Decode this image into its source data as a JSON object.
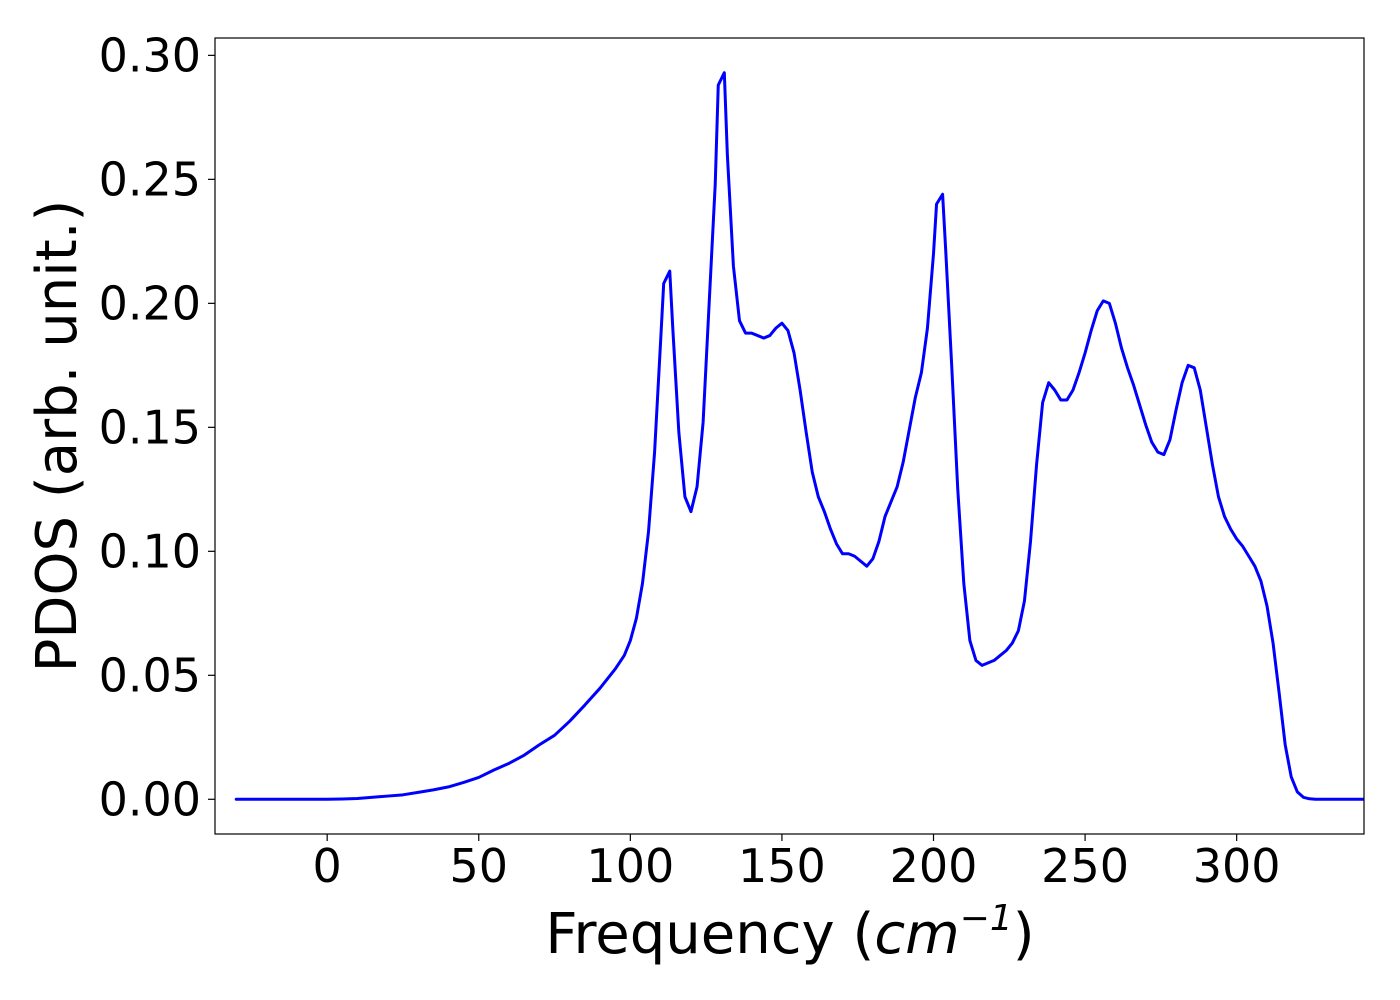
{
  "chart_data": {
    "type": "line",
    "title": "",
    "xlabel": {
      "prefix": "Frequency (",
      "unit": "cm",
      "exponent": "−1",
      "suffix": ")"
    },
    "ylabel": "PDOS (arb. unit.)",
    "xlim": [
      -37,
      342
    ],
    "ylim": [
      -0.014,
      0.307
    ],
    "xticks": [
      0,
      50,
      100,
      150,
      200,
      250,
      300
    ],
    "xtick_labels": [
      "0",
      "50",
      "100",
      "150",
      "200",
      "250",
      "300"
    ],
    "yticks": [
      0.0,
      0.05,
      0.1,
      0.15,
      0.2,
      0.25,
      0.3
    ],
    "ytick_labels": [
      "0.00",
      "0.05",
      "0.10",
      "0.15",
      "0.20",
      "0.25",
      "0.30"
    ],
    "grid": false,
    "legend": null,
    "series": [
      {
        "color": "#0000ff",
        "points": [
          [
            -30,
            0.0
          ],
          [
            -20,
            0.0
          ],
          [
            -10,
            0.0
          ],
          [
            0,
            0.0
          ],
          [
            5,
            0.0001
          ],
          [
            10,
            0.0003
          ],
          [
            15,
            0.0008
          ],
          [
            20,
            0.0013
          ],
          [
            25,
            0.0018
          ],
          [
            30,
            0.0028
          ],
          [
            35,
            0.0038
          ],
          [
            40,
            0.005
          ],
          [
            45,
            0.0068
          ],
          [
            50,
            0.0088
          ],
          [
            55,
            0.0118
          ],
          [
            60,
            0.0145
          ],
          [
            65,
            0.0178
          ],
          [
            70,
            0.022
          ],
          [
            75,
            0.0258
          ],
          [
            80,
            0.0315
          ],
          [
            85,
            0.038
          ],
          [
            90,
            0.0448
          ],
          [
            95,
            0.0525
          ],
          [
            98,
            0.058
          ],
          [
            100,
            0.064
          ],
          [
            102,
            0.073
          ],
          [
            104,
            0.087
          ],
          [
            106,
            0.108
          ],
          [
            108,
            0.14
          ],
          [
            110,
            0.185
          ],
          [
            111,
            0.208
          ],
          [
            113,
            0.213
          ],
          [
            114,
            0.19
          ],
          [
            116,
            0.148
          ],
          [
            118,
            0.122
          ],
          [
            120,
            0.116
          ],
          [
            122,
            0.126
          ],
          [
            124,
            0.152
          ],
          [
            126,
            0.2
          ],
          [
            128,
            0.248
          ],
          [
            129,
            0.288
          ],
          [
            131,
            0.293
          ],
          [
            132,
            0.26
          ],
          [
            134,
            0.215
          ],
          [
            136,
            0.193
          ],
          [
            138,
            0.188
          ],
          [
            140,
            0.188
          ],
          [
            142,
            0.187
          ],
          [
            144,
            0.186
          ],
          [
            146,
            0.187
          ],
          [
            148,
            0.19
          ],
          [
            150,
            0.192
          ],
          [
            152,
            0.189
          ],
          [
            154,
            0.18
          ],
          [
            156,
            0.165
          ],
          [
            158,
            0.148
          ],
          [
            160,
            0.132
          ],
          [
            162,
            0.122
          ],
          [
            164,
            0.116
          ],
          [
            166,
            0.109
          ],
          [
            168,
            0.103
          ],
          [
            170,
            0.099
          ],
          [
            172,
            0.099
          ],
          [
            174,
            0.098
          ],
          [
            176,
            0.096
          ],
          [
            178,
            0.094
          ],
          [
            180,
            0.097
          ],
          [
            182,
            0.104
          ],
          [
            184,
            0.114
          ],
          [
            186,
            0.12
          ],
          [
            188,
            0.126
          ],
          [
            190,
            0.136
          ],
          [
            192,
            0.149
          ],
          [
            194,
            0.162
          ],
          [
            196,
            0.172
          ],
          [
            198,
            0.19
          ],
          [
            200,
            0.22
          ],
          [
            201,
            0.24
          ],
          [
            203,
            0.244
          ],
          [
            204,
            0.222
          ],
          [
            206,
            0.175
          ],
          [
            208,
            0.125
          ],
          [
            210,
            0.087
          ],
          [
            212,
            0.064
          ],
          [
            214,
            0.056
          ],
          [
            216,
            0.054
          ],
          [
            218,
            0.055
          ],
          [
            220,
            0.056
          ],
          [
            222,
            0.058
          ],
          [
            224,
            0.06
          ],
          [
            226,
            0.063
          ],
          [
            228,
            0.068
          ],
          [
            230,
            0.08
          ],
          [
            232,
            0.104
          ],
          [
            234,
            0.135
          ],
          [
            236,
            0.16
          ],
          [
            238,
            0.168
          ],
          [
            240,
            0.165
          ],
          [
            242,
            0.161
          ],
          [
            244,
            0.161
          ],
          [
            246,
            0.165
          ],
          [
            248,
            0.172
          ],
          [
            250,
            0.18
          ],
          [
            252,
            0.189
          ],
          [
            254,
            0.197
          ],
          [
            256,
            0.201
          ],
          [
            258,
            0.2
          ],
          [
            260,
            0.192
          ],
          [
            262,
            0.182
          ],
          [
            264,
            0.174
          ],
          [
            266,
            0.167
          ],
          [
            268,
            0.159
          ],
          [
            270,
            0.151
          ],
          [
            272,
            0.144
          ],
          [
            274,
            0.14
          ],
          [
            276,
            0.139
          ],
          [
            278,
            0.145
          ],
          [
            280,
            0.157
          ],
          [
            282,
            0.168
          ],
          [
            284,
            0.175
          ],
          [
            286,
            0.174
          ],
          [
            288,
            0.165
          ],
          [
            290,
            0.15
          ],
          [
            292,
            0.135
          ],
          [
            294,
            0.122
          ],
          [
            296,
            0.114
          ],
          [
            298,
            0.109
          ],
          [
            300,
            0.105
          ],
          [
            302,
            0.102
          ],
          [
            304,
            0.098
          ],
          [
            306,
            0.094
          ],
          [
            308,
            0.088
          ],
          [
            310,
            0.078
          ],
          [
            312,
            0.063
          ],
          [
            314,
            0.043
          ],
          [
            316,
            0.022
          ],
          [
            318,
            0.009
          ],
          [
            320,
            0.003
          ],
          [
            322,
            0.0008
          ],
          [
            324,
            0.0002
          ],
          [
            326,
            0.0
          ],
          [
            335,
            0.0
          ],
          [
            345,
            0.0
          ],
          [
            355,
            0.0
          ]
        ]
      }
    ]
  }
}
